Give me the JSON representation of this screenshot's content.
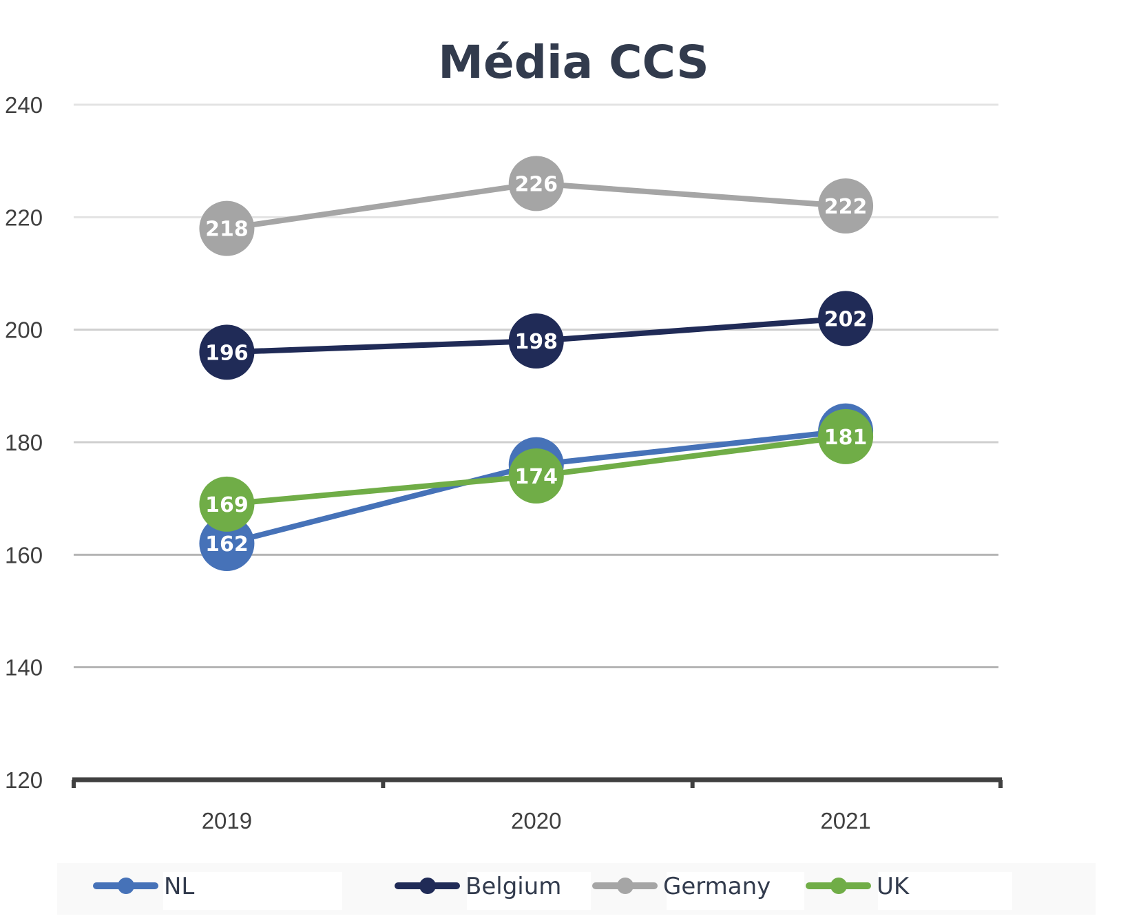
{
  "chart_data": {
    "type": "line",
    "title": "Média CCS",
    "xlabel": "",
    "ylabel": "",
    "categories": [
      "2019",
      "2020",
      "2021"
    ],
    "ylim": [
      120,
      240
    ],
    "yticks": [
      120,
      140,
      160,
      180,
      200,
      220,
      240
    ],
    "grid": true,
    "legend_position": "bottom",
    "data_labels": true,
    "series": [
      {
        "name": "NL",
        "color": "#4672b8",
        "values": [
          162,
          176,
          182
        ]
      },
      {
        "name": "Belgium",
        "color": "#202b57",
        "values": [
          196,
          198,
          202
        ]
      },
      {
        "name": "Germany",
        "color": "#a5a5a5",
        "values": [
          218,
          226,
          222
        ]
      },
      {
        "name": "UK",
        "color": "#70ad47",
        "values": [
          169,
          174,
          181
        ]
      }
    ]
  }
}
